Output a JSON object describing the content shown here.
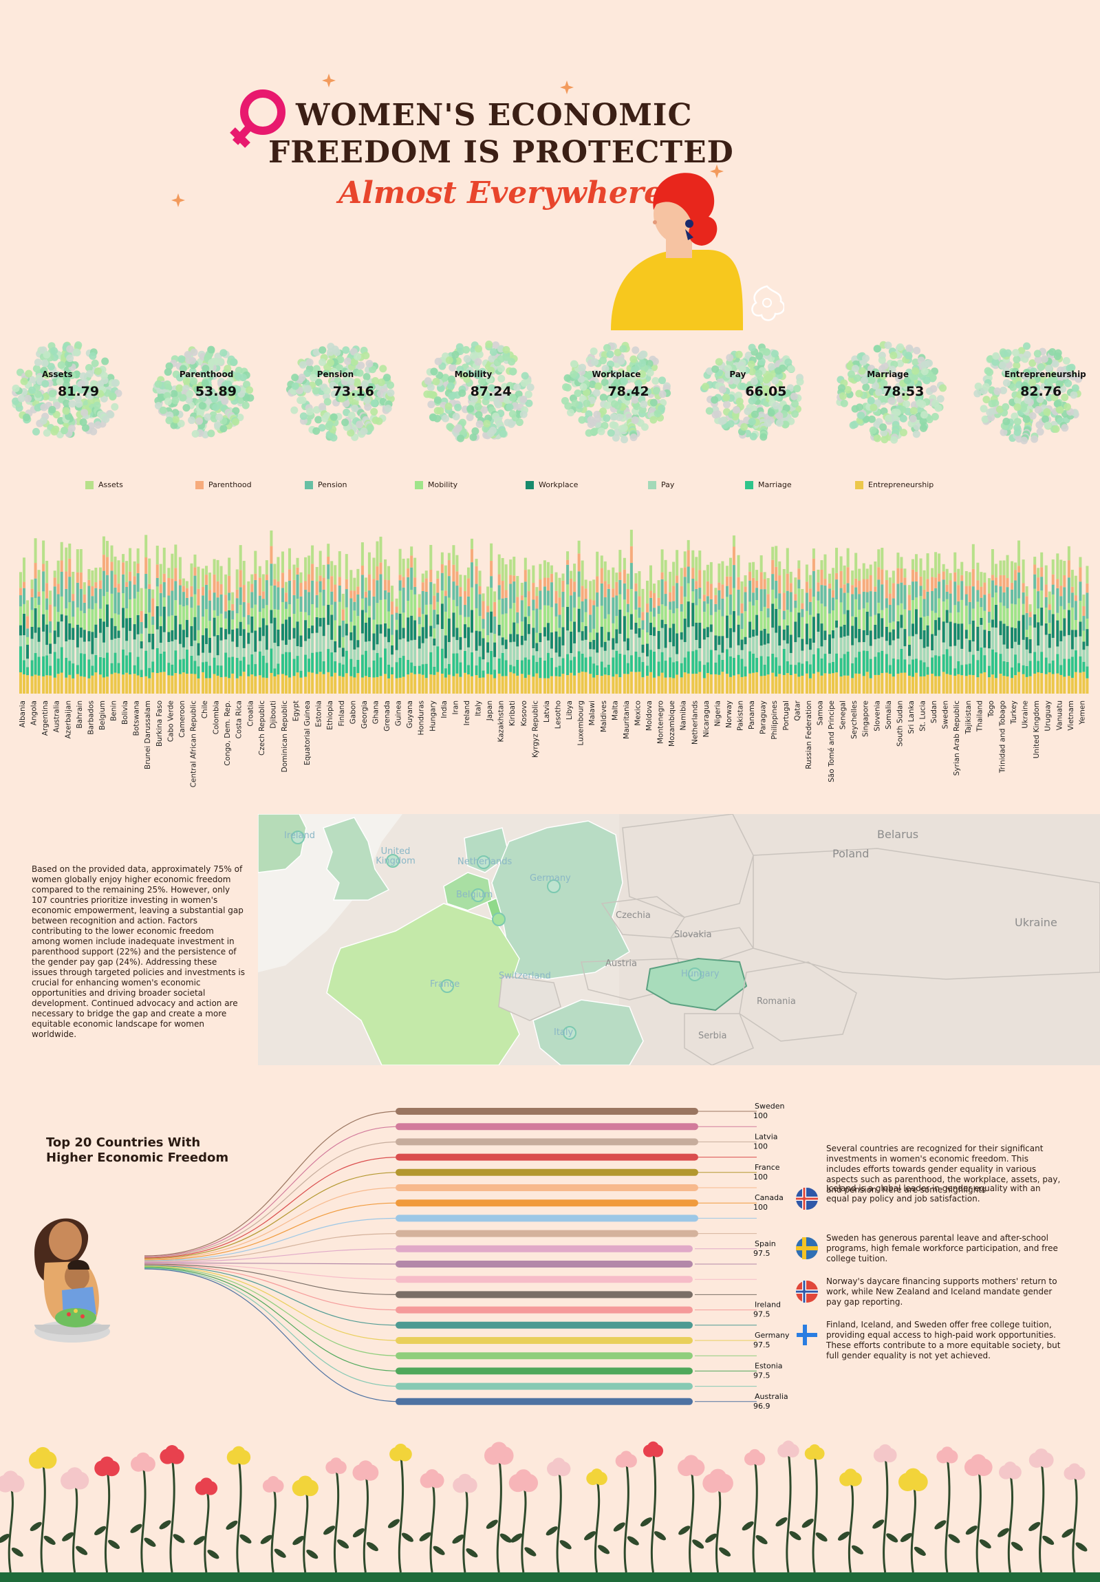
{
  "header": {
    "title_line1": "WOMEN'S ECONOMIC",
    "title_line2": "FREEDOM IS PROTECTED",
    "subtitle": "Almost Everywhere"
  },
  "colors": {
    "background": "#fde9dc",
    "title": "#3b1f15",
    "accent": "#e8452c",
    "venus": "#e8196e",
    "ground": "#1e6b3a"
  },
  "chart_data": [
    {
      "type": "bubble-clusters",
      "indicators": [
        {
          "label": "Assets",
          "value": "81.79"
        },
        {
          "label": "Parenthood",
          "value": "53.89"
        },
        {
          "label": "Pension",
          "value": "73.16"
        },
        {
          "label": "Mobility",
          "value": "87.24"
        },
        {
          "label": "Workplace",
          "value": "78.42"
        },
        {
          "label": "Pay",
          "value": "66.05"
        },
        {
          "label": "Marriage",
          "value": "78.53"
        },
        {
          "label": "Entrepreneurship",
          "value": "82.76"
        }
      ]
    },
    {
      "type": "bar",
      "stacked": true,
      "legend_placement": "top",
      "series": [
        {
          "name": "Assets",
          "color": "#b7e08a"
        },
        {
          "name": "Parenthood",
          "color": "#f6ab7c"
        },
        {
          "name": "Pension",
          "color": "#67bfa3"
        },
        {
          "name": "Mobility",
          "color": "#9fe48a"
        },
        {
          "name": "Workplace",
          "color": "#178a6c"
        },
        {
          "name": "Pay",
          "color": "#a3d9b8"
        },
        {
          "name": "Marriage",
          "color": "#2fc48a"
        },
        {
          "name": "Entrepreneurship",
          "color": "#ecc74a"
        }
      ],
      "categories": [
        "Albania",
        "Angola",
        "Argentina",
        "Australia",
        "Azerbaijan",
        "Bahrain",
        "Barbados",
        "Belgium",
        "Benin",
        "Bolivia",
        "Botswana",
        "Brunei Darussalam",
        "Burkina Faso",
        "Cabo Verde",
        "Cameroon",
        "Central African Republic",
        "Chile",
        "Colombia",
        "Congo, Dem. Rep.",
        "Costa Rica",
        "Croatia",
        "Czech Republic",
        "Djibouti",
        "Dominican Republic",
        "Egypt",
        "Equatorial Guinea",
        "Estonia",
        "Ethiopia",
        "Finland",
        "Gabon",
        "Georgia",
        "Ghana",
        "Grenada",
        "Guinea",
        "Guyana",
        "Honduras",
        "Hungary",
        "India",
        "Iran",
        "Ireland",
        "Italy",
        "Japan",
        "Kazakhstan",
        "Kiribati",
        "Kosovo",
        "Kyrgyz Republic",
        "Latvia",
        "Lesotho",
        "Libya",
        "Luxembourg",
        "Malawi",
        "Maldives",
        "Malta",
        "Mauritania",
        "Mexico",
        "Moldova",
        "Montenegro",
        "Mozambique",
        "Namibia",
        "Netherlands",
        "Nicaragua",
        "Nigeria",
        "Norway",
        "Pakistan",
        "Panama",
        "Paraguay",
        "Philippines",
        "Portugal",
        "Qatar",
        "Russian Federation",
        "Samoa",
        "São Tomé and Principe",
        "Senegal",
        "Seychelles",
        "Singapore",
        "Slovenia",
        "Somalia",
        "South Sudan",
        "Sri Lanka",
        "St. Lucia",
        "Sudan",
        "Sweden",
        "Syrian Arab Republic",
        "Tajikistan",
        "Thailand",
        "Togo",
        "Trinidad and Tobago",
        "Turkey",
        "Ukraine",
        "United Kingdom",
        "Uruguay",
        "Vanuatu",
        "Vietnam",
        "Yemen"
      ]
    },
    {
      "type": "map",
      "countries": [
        "Ireland",
        "United Kingdom",
        "Netherlands",
        "Belgium",
        "Germany",
        "France",
        "Switzerland",
        "Italy",
        "Czechia",
        "Slovakia",
        "Austria",
        "Hungary",
        "Romania",
        "Serbia",
        "Poland",
        "Belarus",
        "Ukraine"
      ]
    },
    {
      "type": "ranked-lines",
      "title": "Top 20 Countries With Higher Economic Freedom",
      "labeled": [
        {
          "country": "Sweden",
          "value": "100"
        },
        {
          "country": "Latvia",
          "value": "100"
        },
        {
          "country": "France",
          "value": "100"
        },
        {
          "country": "Canada",
          "value": "100"
        },
        {
          "country": "Spain",
          "value": "97.5"
        },
        {
          "country": "Ireland",
          "value": "97.5"
        },
        {
          "country": "Germany",
          "value": "97.5"
        },
        {
          "country": "Estonia",
          "value": "97.5"
        },
        {
          "country": "Australia",
          "value": "96.9"
        }
      ],
      "line_colors": [
        "#9a7560",
        "#d27a9b",
        "#c6ac9c",
        "#da4d4d",
        "#b3972e",
        "#f7b98c",
        "#f09a3c",
        "#9cc7e6",
        "#d4b29c",
        "#e0a9c8",
        "#b388a9",
        "#f6bcc8",
        "#7a6e66",
        "#f59a9a",
        "#4d9a92",
        "#e9cf5b",
        "#8fce7c",
        "#4fa85b",
        "#86c9b3",
        "#4e72a2"
      ]
    }
  ],
  "map_text": "Based on the provided data, approximately 75% of women globally enjoy higher economic freedom compared to the remaining 25%. However, only 107 countries prioritize investing in women's economic empowerment, leaving a substantial gap between recognition and action. Factors contributing to the lower economic freedom among women include inadequate investment in parenthood support (22%) and the persistence of the gender pay gap (24%). Addressing these issues through targeted policies and investments is crucial for enhancing women's economic opportunities and driving broader societal development. Continued advocacy and action are necessary to bridge the gap and create a more equitable economic landscape for women worldwide.",
  "highlights": {
    "intro": "Several countries are recognized for their significant investments in women's economic freedom. This includes efforts towards gender equality in various aspects such as parenthood, the workplace, assets, pay, and pension. Here are some highlights",
    "items": [
      {
        "flag": "iceland-flag",
        "text": "Iceland is a global leader in gender equality with an equal pay policy and job satisfaction."
      },
      {
        "flag": "sweden-flag",
        "text": "Sweden has generous parental leave and after-school programs, high female workforce participation, and free college tuition."
      },
      {
        "flag": "norway-flag",
        "text": "Norway's daycare financing supports mothers' return to work, while New Zealand and Iceland mandate gender pay gap reporting."
      },
      {
        "flag": "finland-flag",
        "text": " Finland, Iceland, and Sweden offer free college tuition, providing equal access to high-paid work opportunities. These efforts contribute to a more equitable society, but full gender equality is not yet achieved."
      }
    ]
  }
}
